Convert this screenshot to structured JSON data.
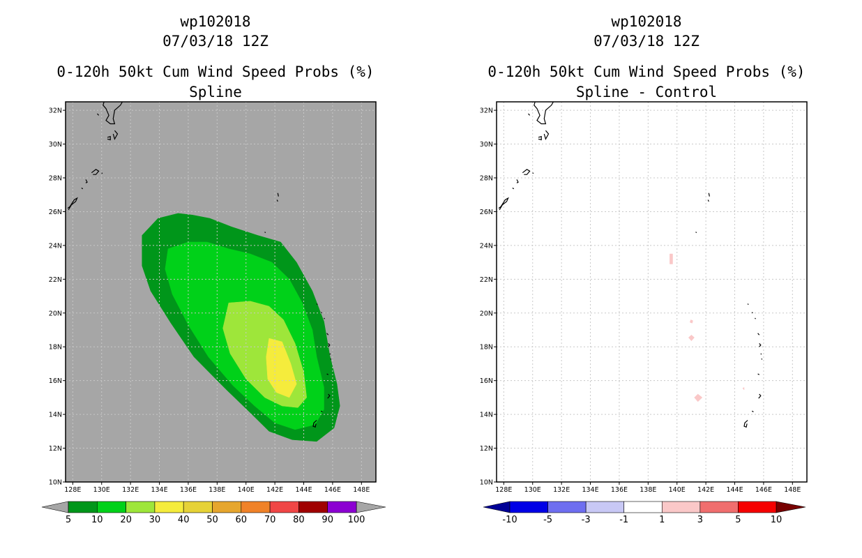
{
  "colors": {
    "map_bg_left": "#a6a6a6",
    "map_bg_right": "#ffffff",
    "coast": "#000000",
    "grid": "#c8c8c8"
  },
  "chart_data": [
    {
      "type": "heatmap",
      "title_lines": [
        "wp102018",
        "07/03/18 12Z",
        "0-120h 50kt Cum Wind Speed Probs (%)",
        "Spline"
      ],
      "xlabel": "",
      "ylabel": "",
      "xlim": [
        127.5,
        149
      ],
      "ylim": [
        10,
        32.5
      ],
      "grid": true,
      "xticks": [
        128,
        130,
        132,
        134,
        136,
        138,
        140,
        142,
        144,
        146,
        148
      ],
      "xtick_labels": [
        "128E",
        "130E",
        "132E",
        "134E",
        "136E",
        "138E",
        "140E",
        "142E",
        "144E",
        "146E",
        "148E"
      ],
      "yticks": [
        10,
        12,
        14,
        16,
        18,
        20,
        22,
        24,
        26,
        28,
        30,
        32
      ],
      "ytick_labels": [
        "10N",
        "12N",
        "14N",
        "16N",
        "18N",
        "20N",
        "22N",
        "24N",
        "26N",
        "28N",
        "30N",
        "32N"
      ],
      "contours": [
        {
          "level": "5-10",
          "color": "#00961a",
          "polygon": [
            [
              132.8,
              24.6
            ],
            [
              133.9,
              25.6
            ],
            [
              135.3,
              25.9
            ],
            [
              136.3,
              25.8
            ],
            [
              137.5,
              25.6
            ],
            [
              139.0,
              25.1
            ],
            [
              140.8,
              24.6
            ],
            [
              142.4,
              24.2
            ],
            [
              143.5,
              23.0
            ],
            [
              144.6,
              21.3
            ],
            [
              145.4,
              19.5
            ],
            [
              145.8,
              17.5
            ],
            [
              146.3,
              15.8
            ],
            [
              146.5,
              14.5
            ],
            [
              146.1,
              13.2
            ],
            [
              144.9,
              12.4
            ],
            [
              143.2,
              12.5
            ],
            [
              141.6,
              13.0
            ],
            [
              140.3,
              14.1
            ],
            [
              138.6,
              15.5
            ],
            [
              136.4,
              17.4
            ],
            [
              134.8,
              19.4
            ],
            [
              133.4,
              21.3
            ],
            [
              132.8,
              22.8
            ]
          ]
        },
        {
          "level": "10-20",
          "color": "#00d119",
          "polygon": [
            [
              134.6,
              23.8
            ],
            [
              136.0,
              24.2
            ],
            [
              137.3,
              24.2
            ],
            [
              138.8,
              23.8
            ],
            [
              140.3,
              23.5
            ],
            [
              141.8,
              23.0
            ],
            [
              143.0,
              22.0
            ],
            [
              143.9,
              20.6
            ],
            [
              144.6,
              19.0
            ],
            [
              144.9,
              17.4
            ],
            [
              145.4,
              15.6
            ],
            [
              145.4,
              14.3
            ],
            [
              144.8,
              13.4
            ],
            [
              143.4,
              13.1
            ],
            [
              142.0,
              13.5
            ],
            [
              140.6,
              14.5
            ],
            [
              139.1,
              15.7
            ],
            [
              137.4,
              17.4
            ],
            [
              136.0,
              19.3
            ],
            [
              134.9,
              21.1
            ],
            [
              134.4,
              22.6
            ]
          ]
        },
        {
          "level": "20-30",
          "color": "#9ee63a",
          "polygon": [
            [
              138.8,
              20.6
            ],
            [
              140.3,
              20.7
            ],
            [
              141.6,
              20.4
            ],
            [
              142.6,
              19.6
            ],
            [
              143.4,
              18.2
            ],
            [
              144.0,
              16.5
            ],
            [
              144.2,
              15.0
            ],
            [
              143.6,
              14.4
            ],
            [
              142.5,
              14.5
            ],
            [
              141.3,
              15.0
            ],
            [
              140.0,
              16.1
            ],
            [
              138.9,
              17.6
            ],
            [
              138.4,
              19.1
            ]
          ]
        },
        {
          "level": "30-40",
          "color": "#f5ec3c",
          "polygon": [
            [
              141.6,
              18.5
            ],
            [
              142.5,
              18.3
            ],
            [
              143.1,
              17.0
            ],
            [
              143.5,
              15.8
            ],
            [
              143.0,
              15.0
            ],
            [
              142.1,
              15.3
            ],
            [
              141.5,
              16.1
            ],
            [
              141.4,
              17.4
            ]
          ]
        }
      ],
      "coastlines": [
        {
          "name": "kyushu",
          "points": [
            [
              130.6,
              32.6
            ],
            [
              130.2,
              32.6
            ],
            [
              130.1,
              32.3
            ],
            [
              130.3,
              32.1
            ],
            [
              130.5,
              31.7
            ],
            [
              130.3,
              31.4
            ],
            [
              130.6,
              31.2
            ],
            [
              130.9,
              31.2
            ],
            [
              130.8,
              31.5
            ],
            [
              130.9,
              32.0
            ],
            [
              131.3,
              32.3
            ],
            [
              131.5,
              32.6
            ]
          ]
        },
        {
          "name": "tanegashima",
          "points": [
            [
              130.9,
              30.8
            ],
            [
              131.1,
              30.6
            ],
            [
              130.9,
              30.3
            ],
            [
              130.8,
              30.6
            ]
          ]
        },
        {
          "name": "yakushima",
          "points": [
            [
              130.4,
              30.4
            ],
            [
              130.6,
              30.45
            ],
            [
              130.6,
              30.25
            ],
            [
              130.4,
              30.3
            ]
          ]
        },
        {
          "name": "koshikijima",
          "points": [
            [
              129.7,
              31.8
            ],
            [
              129.8,
              31.7
            ]
          ]
        },
        {
          "name": "amami",
          "points": [
            [
              129.3,
              28.3
            ],
            [
              129.6,
              28.5
            ],
            [
              129.8,
              28.4
            ],
            [
              129.6,
              28.2
            ],
            [
              129.4,
              28.2
            ]
          ]
        },
        {
          "name": "tokunoshima",
          "points": [
            [
              128.9,
              27.9
            ],
            [
              129.0,
              27.75
            ],
            [
              128.9,
              27.7
            ]
          ]
        },
        {
          "name": "okinoerabu",
          "points": [
            [
              128.6,
              27.4
            ],
            [
              128.7,
              27.35
            ]
          ]
        },
        {
          "name": "okinawa",
          "points": [
            [
              127.7,
              26.1
            ],
            [
              127.9,
              26.4
            ],
            [
              128.2,
              26.6
            ],
            [
              128.3,
              26.8
            ],
            [
              128.1,
              26.7
            ],
            [
              127.8,
              26.3
            ],
            [
              127.65,
              26.2
            ]
          ]
        },
        {
          "name": "kikai",
          "points": [
            [
              130.0,
              28.3
            ],
            [
              130.05,
              28.25
            ]
          ]
        },
        {
          "name": "ogasawara-n",
          "points": [
            [
              142.2,
              27.1
            ],
            [
              142.25,
              26.9
            ]
          ]
        },
        {
          "name": "ogasawara-s",
          "points": [
            [
              142.15,
              26.7
            ],
            [
              142.2,
              26.6
            ]
          ]
        },
        {
          "name": "iwojima",
          "points": [
            [
              141.3,
              24.8
            ],
            [
              141.35,
              24.75
            ]
          ]
        },
        {
          "name": "farallon",
          "points": [
            [
              144.9,
              20.55
            ],
            [
              144.95,
              20.5
            ]
          ]
        },
        {
          "name": "maug",
          "points": [
            [
              145.2,
              20.05
            ],
            [
              145.25,
              20.0
            ]
          ]
        },
        {
          "name": "asuncion",
          "points": [
            [
              145.4,
              19.7
            ],
            [
              145.45,
              19.65
            ]
          ]
        },
        {
          "name": "agrihan",
          "points": [
            [
              145.6,
              18.8
            ],
            [
              145.7,
              18.7
            ]
          ]
        },
        {
          "name": "pagan",
          "points": [
            [
              145.7,
              18.2
            ],
            [
              145.8,
              18.1
            ],
            [
              145.7,
              18.0
            ]
          ]
        },
        {
          "name": "alamagan",
          "points": [
            [
              145.8,
              17.6
            ],
            [
              145.85,
              17.55
            ]
          ]
        },
        {
          "name": "guguan",
          "points": [
            [
              145.85,
              17.3
            ],
            [
              145.9,
              17.25
            ]
          ]
        },
        {
          "name": "anatahan",
          "points": [
            [
              145.6,
              16.4
            ],
            [
              145.7,
              16.35
            ]
          ]
        },
        {
          "name": "saipan",
          "points": [
            [
              145.7,
              15.2
            ],
            [
              145.8,
              15.1
            ],
            [
              145.65,
              14.95
            ]
          ]
        },
        {
          "name": "rota",
          "points": [
            [
              145.2,
              14.2
            ],
            [
              145.3,
              14.15
            ]
          ]
        },
        {
          "name": "guam",
          "points": [
            [
              144.9,
              13.65
            ],
            [
              144.7,
              13.5
            ],
            [
              144.65,
              13.3
            ],
            [
              144.8,
              13.25
            ],
            [
              144.85,
              13.45
            ]
          ]
        }
      ],
      "colorbar": {
        "labels": [
          "5",
          "10",
          "20",
          "30",
          "40",
          "50",
          "60",
          "70",
          "80",
          "90",
          "100"
        ],
        "low_color": "#a6a6a6",
        "high_color": "#a6a6a6",
        "colors": [
          "#00961a",
          "#00d119",
          "#9ee63a",
          "#f5ec3c",
          "#e6d237",
          "#e6a62e",
          "#f08228",
          "#f04646",
          "#a00000",
          "#8c00d2"
        ]
      }
    },
    {
      "type": "heatmap",
      "title_lines": [
        "wp102018",
        "07/03/18 12Z",
        "0-120h 50kt Cum Wind Speed Probs (%)",
        "Spline - Control"
      ],
      "xlabel": "",
      "ylabel": "",
      "xlim": [
        127.5,
        149
      ],
      "ylim": [
        10,
        32.5
      ],
      "grid": true,
      "xticks": [
        128,
        130,
        132,
        134,
        136,
        138,
        140,
        142,
        144,
        146,
        148
      ],
      "xtick_labels": [
        "128E",
        "130E",
        "132E",
        "134E",
        "136E",
        "138E",
        "140E",
        "142E",
        "144E",
        "146E",
        "148E"
      ],
      "yticks": [
        10,
        12,
        14,
        16,
        18,
        20,
        22,
        24,
        26,
        28,
        30,
        32
      ],
      "ytick_labels": [
        "10N",
        "12N",
        "14N",
        "16N",
        "18N",
        "20N",
        "22N",
        "24N",
        "26N",
        "28N",
        "30N",
        "32N"
      ],
      "contours": [
        {
          "level": "1-3",
          "color": "#fac8c8",
          "polygon": [
            [
              139.5,
              23.5
            ],
            [
              139.7,
              23.5
            ],
            [
              139.7,
              22.9
            ],
            [
              139.5,
              22.9
            ]
          ]
        },
        {
          "level": "1-3",
          "color": "#fac8c8",
          "polygon": [
            [
              140.95,
              19.6
            ],
            [
              141.1,
              19.55
            ],
            [
              141.05,
              19.4
            ],
            [
              140.9,
              19.45
            ]
          ]
        },
        {
          "level": "1-3",
          "color": "#fac8c8",
          "polygon": [
            [
              140.8,
              18.55
            ],
            [
              141.0,
              18.7
            ],
            [
              141.2,
              18.55
            ],
            [
              141.0,
              18.35
            ]
          ]
        },
        {
          "level": "1-3",
          "color": "#fac8c8",
          "polygon": [
            [
              141.2,
              15.0
            ],
            [
              141.45,
              15.2
            ],
            [
              141.75,
              15.0
            ],
            [
              141.45,
              14.75
            ]
          ]
        },
        {
          "level": "1-3",
          "color": "#fac8c8",
          "polygon": [
            [
              144.55,
              15.55
            ],
            [
              144.65,
              15.6
            ],
            [
              144.65,
              15.45
            ]
          ]
        }
      ],
      "coastlines": "same",
      "colorbar": {
        "labels": [
          "-10",
          "-5",
          "-3",
          "-1",
          "1",
          "3",
          "5",
          "10"
        ],
        "low_color": "#000096",
        "high_color": "#780000",
        "colors": [
          "#0000e6",
          "#6e6ef0",
          "#c8c8f5",
          "#ffffff",
          "#fac8c8",
          "#f06e6e",
          "#f50000"
        ]
      }
    }
  ]
}
